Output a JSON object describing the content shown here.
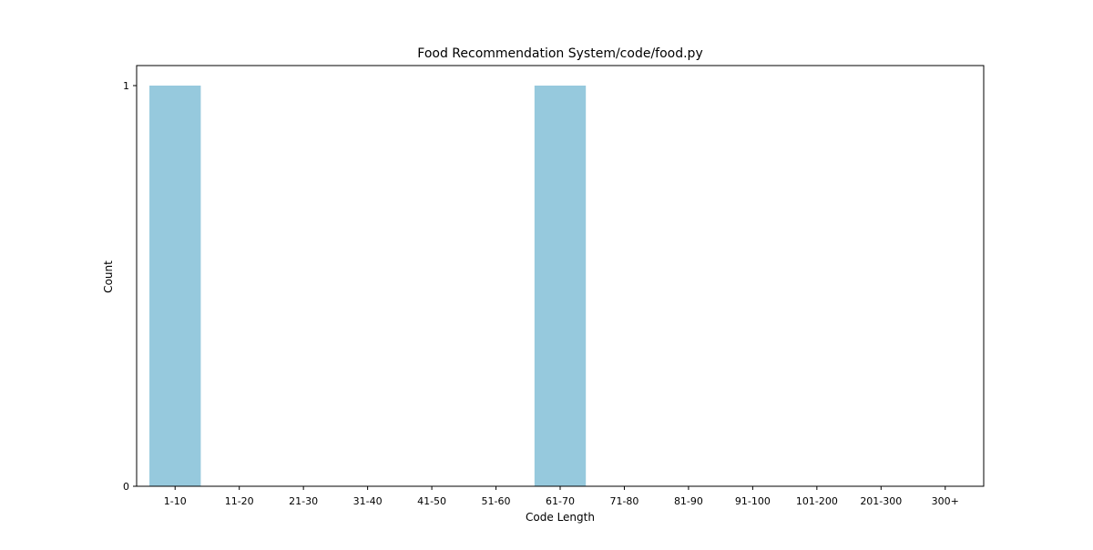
{
  "chart_data": {
    "type": "bar",
    "title": "Food Recommendation System/code/food.py",
    "xlabel": "Code Length",
    "ylabel": "Count",
    "categories": [
      "1-10",
      "11-20",
      "21-30",
      "31-40",
      "41-50",
      "51-60",
      "61-70",
      "71-80",
      "81-90",
      "91-100",
      "101-200",
      "201-300",
      "300+"
    ],
    "values": [
      1,
      0,
      0,
      0,
      0,
      0,
      1,
      0,
      0,
      0,
      0,
      0,
      0
    ],
    "yticks": [
      0,
      1
    ],
    "ylim": [
      0,
      1
    ],
    "bar_color": "#96c9dd",
    "grid": false,
    "legend": "none"
  }
}
